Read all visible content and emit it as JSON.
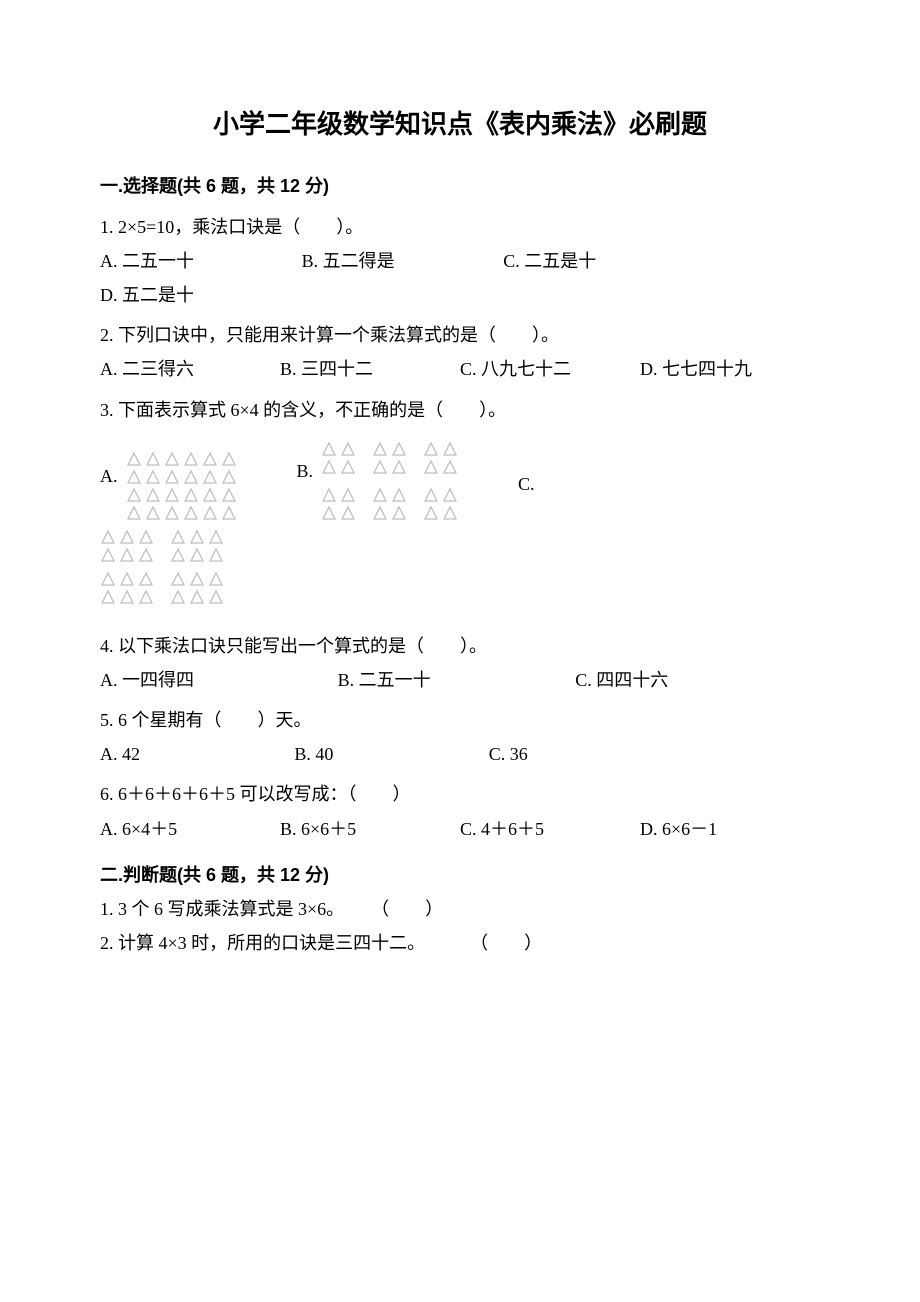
{
  "title": "小学二年级数学知识点《表内乘法》必刷题",
  "section1_header": "一.选择题(共 6 题，共 12 分)",
  "q1": {
    "stem": "1. 2×5=10，乘法口诀是（　　）。",
    "optA": "A. 二五一十",
    "optB": "B. 五二得是",
    "optC": "C. 二五是十",
    "optD": "D. 五二是十"
  },
  "q2": {
    "stem": "2. 下列口诀中，只能用来计算一个乘法算式的是（　　）。",
    "optA": "A. 二三得六",
    "optB": "B. 三四十二",
    "optC": "C. 八九七十二",
    "optD": "D. 七七四十九"
  },
  "q3": {
    "stem": "3. 下面表示算式 6×4 的含义，不正确的是（　　）。",
    "labelA": "A.",
    "labelB": "B.",
    "labelC": "C.",
    "triangle": {
      "stroke": "#bfbfbf",
      "fill": "#ffffff",
      "size": 16,
      "optA": {
        "rows": 4,
        "cols": 6
      },
      "optB": {
        "rows": 2,
        "groupsPerRow": 3,
        "groupRows": 2,
        "groupCols": 2
      },
      "optC": {
        "blocks": 2,
        "blockRows": 2,
        "groupsPerRow": 2,
        "groupCols": 3
      }
    }
  },
  "q4": {
    "stem": "4. 以下乘法口诀只能写出一个算式的是（　　）。",
    "optA": "A. 一四得四",
    "optB": "B. 二五一十",
    "optC": "C. 四四十六"
  },
  "q5": {
    "stem": "5. 6 个星期有（　　）天。",
    "optA": "A. 42",
    "optB": "B. 40",
    "optC": "C. 36"
  },
  "q6": {
    "stem": "6. 6＋6＋6＋6＋5 可以改写成：（　　）",
    "optA": "A. 6×4＋5",
    "optB": "B. 6×6＋5",
    "optC": "C. 4＋6＋5",
    "optD": "D. 6×6－1"
  },
  "section2_header": "二.判断题(共 6 题，共 12 分)",
  "tf1": {
    "text": "1. 3 个 6 写成乘法算式是 3×6。",
    "blank": "　　（　　）"
  },
  "tf2": {
    "text": "2. 计算 4×3 时，所用的口诀是三四十二。",
    "blank": "　　　（　　）"
  }
}
